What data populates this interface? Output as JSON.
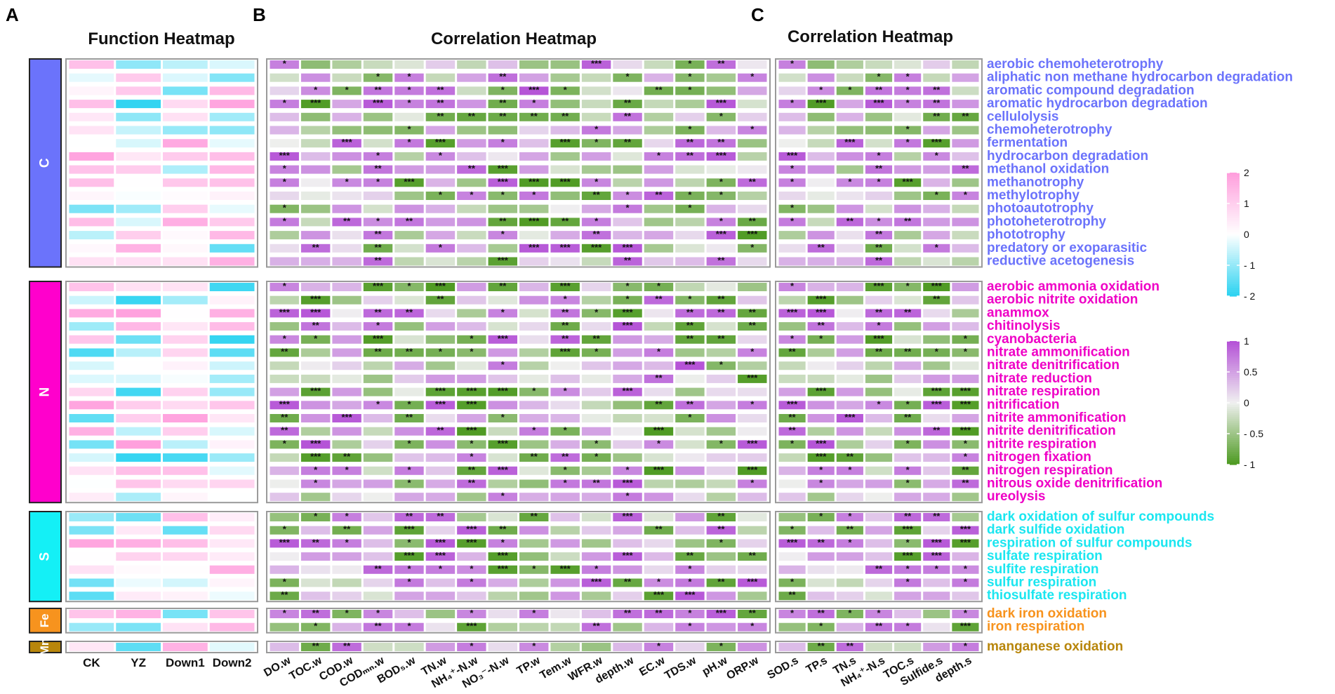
{
  "panel_labels": {
    "a": "A",
    "b": "B",
    "c": "C"
  },
  "chart_data": [
    {
      "type": "heatmap",
      "title": "Function Heatmap",
      "columns": [
        "CK",
        "YZ",
        "Down1",
        "Down2"
      ],
      "color_scale": {
        "min": -2,
        "max": 2,
        "ticks": [
          "2",
          "1",
          "0",
          "- 1",
          "- 2"
        ],
        "low": "#2ed3f1",
        "mid": "#ffffff",
        "high": "#ff9fdd"
      }
    },
    {
      "type": "heatmap",
      "title": "Correlation Heatmap",
      "columns": [
        "DO.w",
        "TOC.w",
        "COD.w",
        "CODₘₙ.w",
        "BOD₅.w",
        "TN.w",
        "NH₄⁺-N.w",
        "NO₃⁻-N.w",
        "TP.w",
        "Tem.w",
        "WFR.w",
        "depth.w",
        "EC.w",
        "TDS.w",
        "pH.w",
        "ORP.w"
      ]
    },
    {
      "type": "heatmap",
      "title": "Correlation Heatmap",
      "columns": [
        "SOD.s",
        "TP.s",
        "TN.s",
        "NH₄⁺-N.s",
        "TOC.s",
        "Sulfide.s",
        "depth.s"
      ],
      "color_scale": {
        "min": -1,
        "max": 1,
        "ticks": [
          "1",
          "0.5",
          "0",
          "- 0.5",
          "- 1"
        ],
        "low": "#4f9b23",
        "mid": "#f0f0f0",
        "high": "#b553d7"
      }
    }
  ],
  "groups": [
    {
      "name": "C",
      "color": "#6b73fb",
      "label_color": "#6b73fb",
      "rows": [
        "aerobic chemoheterotrophy",
        "aliphatic non methane hydrocarbon degradation",
        "aromatic compound degradation",
        "aromatic hydrocarbon degradation",
        "cellulolysis",
        "chemoheterotrophy",
        "fermentation",
        "hydrocarbon degradation",
        "methanol oxidation",
        "methanotrophy",
        "methylotrophy",
        "photoautotrophy",
        "photoheterotrophy",
        "phototrophy",
        "predatory or exoparasitic",
        "reductive acetogenesis"
      ]
    },
    {
      "name": "N",
      "color": "#ff00cc",
      "label_color": "#ef00c6",
      "rows": [
        "aerobic ammonia oxidation",
        "aerobic nitrite oxidation",
        "anammox",
        "chitinolysis",
        "cyanobacteria",
        "nitrate ammonification",
        "nitrate denitrification",
        "nitrate reduction",
        "nitrate respiration",
        "nitrification",
        "nitrite ammonification",
        "nitrite denitrification",
        "nitrite respiration",
        "nitrogen fixation",
        "nitrogen respiration",
        "nitrous oxide denitrification",
        "ureolysis"
      ]
    },
    {
      "name": "S",
      "color": "#14f0f6",
      "label_color": "#1be6f0",
      "rows": [
        "dark oxidation of sulfur compounds",
        "dark sulfide oxidation",
        "respiration of sulfur compounds",
        "sulfate respiration",
        "sulfite respiration",
        "sulfur respiration",
        "thiosulfate respiration"
      ]
    },
    {
      "name": "Fe",
      "color": "#f7931e",
      "label_color": "#f7931e",
      "rows": [
        "dark iron oxidation",
        "iron respiration"
      ]
    },
    {
      "name": "Mn",
      "color": "#b8860b",
      "label_color": "#b8860b",
      "rows": [
        "manganese oxidation"
      ]
    }
  ]
}
